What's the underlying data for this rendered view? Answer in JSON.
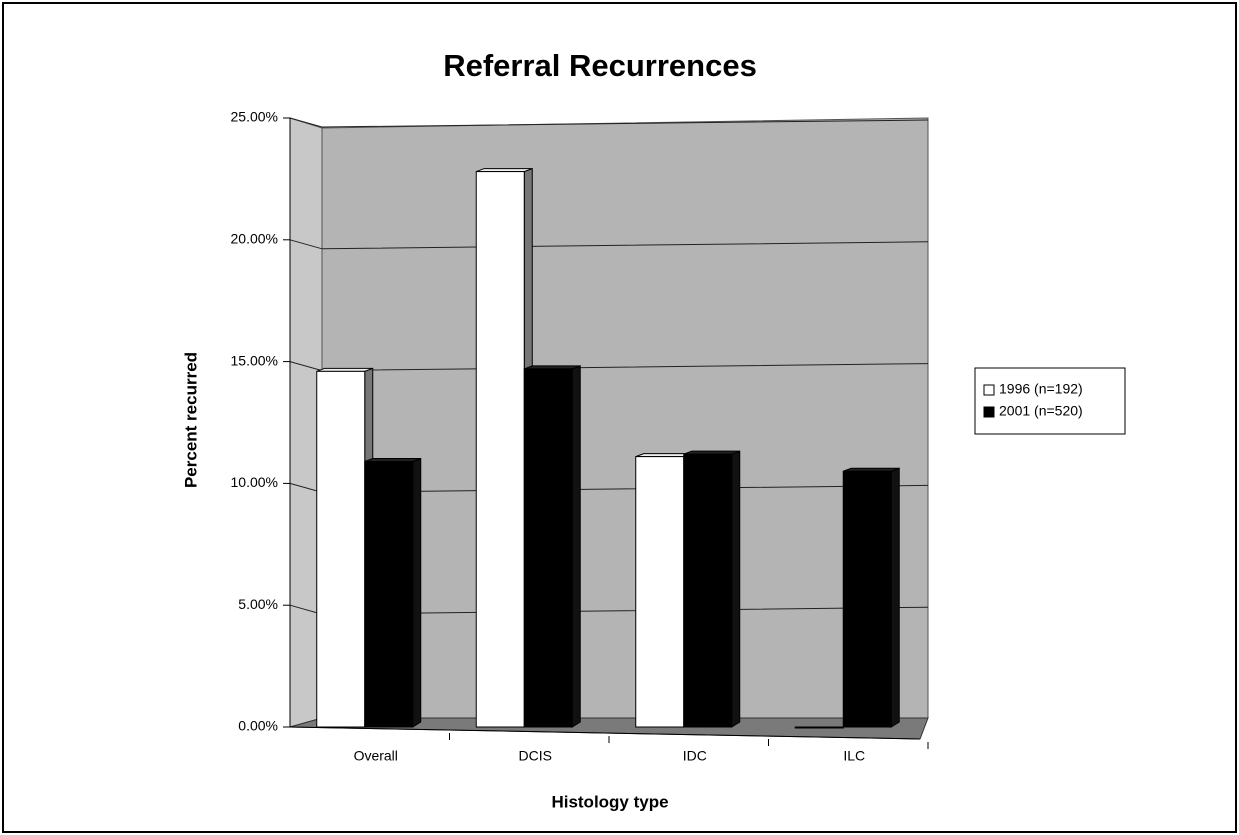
{
  "chart_data": {
    "type": "bar",
    "title": "Referral Recurrences",
    "x_label": "Histology type",
    "y_label": "Percent recurred",
    "categories": [
      "Overall",
      "DCIS",
      "IDC",
      "ILC"
    ],
    "series": [
      {
        "name": "1996 (n=192)",
        "color": "#ffffff",
        "values": [
          14.6,
          22.8,
          11.1,
          0
        ]
      },
      {
        "name": "2001 (n=520)",
        "color": "#000000",
        "values": [
          10.9,
          14.7,
          11.2,
          10.5
        ]
      }
    ],
    "ylim": [
      0,
      25
    ],
    "yticks": [
      {
        "value": 0,
        "label": "0.00%"
      },
      {
        "value": 5,
        "label": "5.00%"
      },
      {
        "value": 10,
        "label": "10.00%"
      },
      {
        "value": 15,
        "label": "15.00%"
      },
      {
        "value": 20,
        "label": "20.00%"
      },
      {
        "value": 25,
        "label": "25.00%"
      }
    ],
    "grid": true,
    "legend": "right"
  }
}
